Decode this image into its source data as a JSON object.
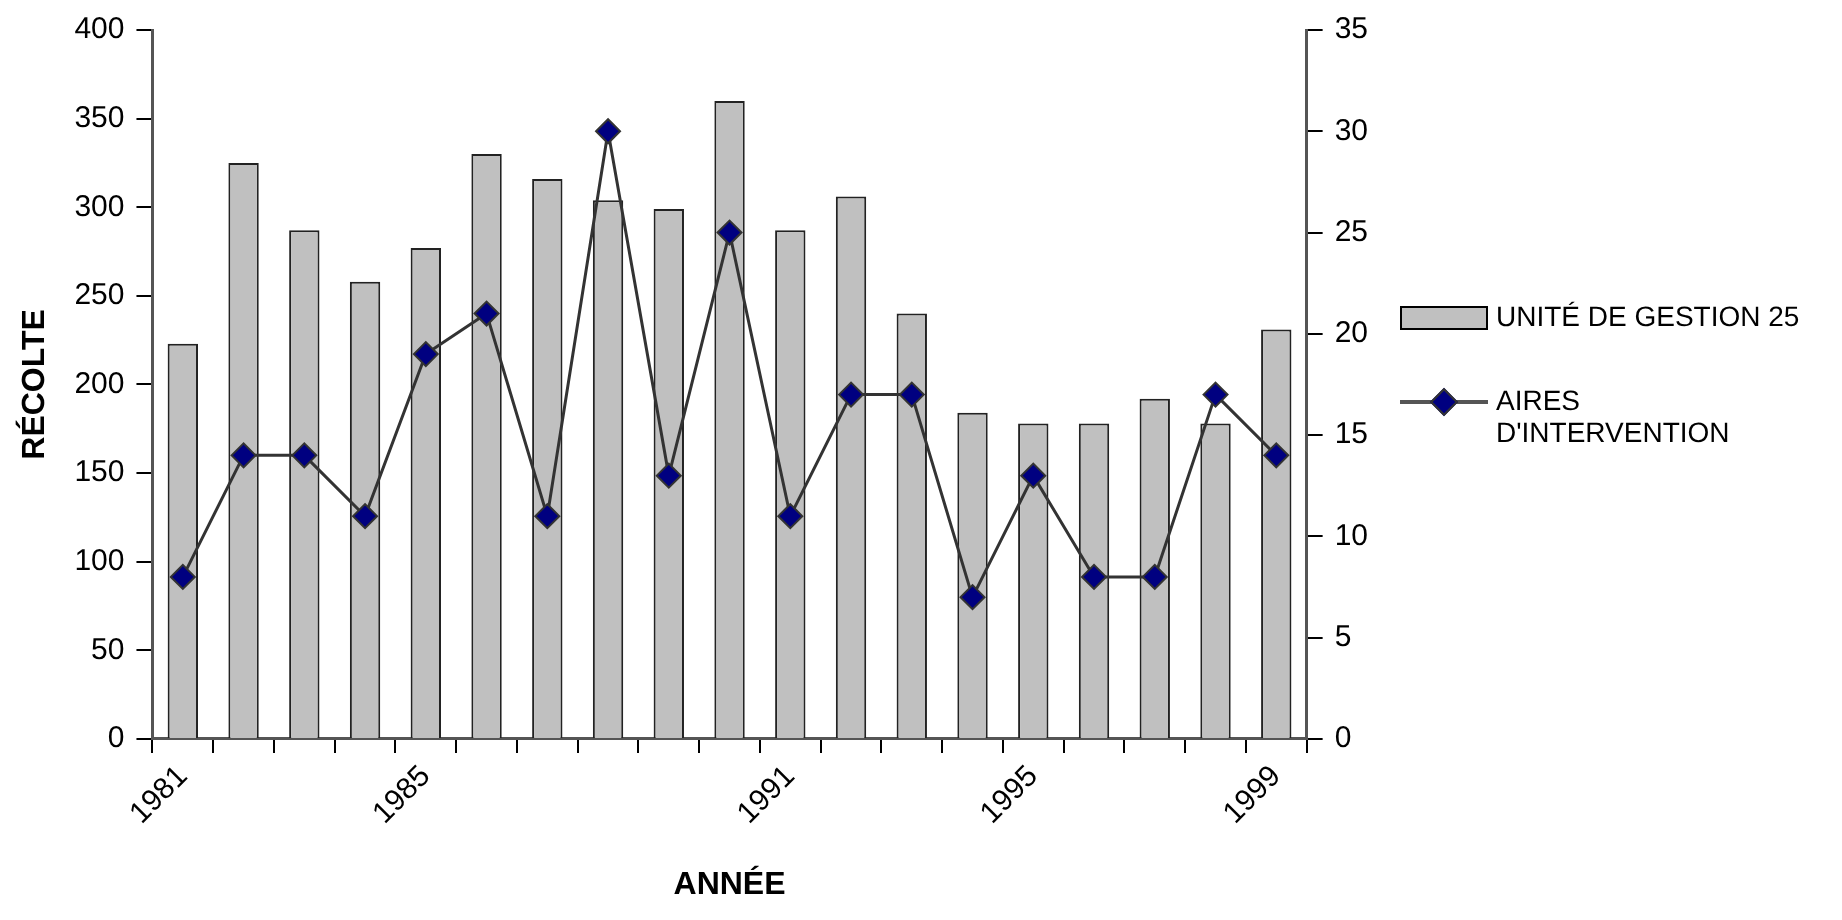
{
  "chart_data": {
    "type": "bar",
    "xlabel": "ANNÉE",
    "ylabel": "RÉCOLTE",
    "categories": [
      "1981",
      null,
      null,
      null,
      "1985",
      null,
      null,
      null,
      null,
      null,
      "1991",
      null,
      null,
      null,
      "1995",
      null,
      null,
      null,
      "1999"
    ],
    "series": [
      {
        "name": "UNITÉ DE GESTION 25",
        "color": "#c0c0c0",
        "values": [
          223,
          325,
          287,
          258,
          277,
          330,
          316,
          304,
          299,
          360,
          287,
          306,
          240,
          184,
          178,
          178,
          192,
          178,
          231
        ]
      },
      {
        "name": "AIRES D'INTERVENTION",
        "type": "line",
        "axis": "y2",
        "color": "#000080",
        "marker": "diamond",
        "values": [
          8,
          14,
          14,
          11,
          19,
          21,
          11,
          30,
          13,
          25,
          11,
          17,
          17,
          7,
          13,
          8,
          8,
          17,
          14
        ]
      }
    ],
    "ylim": [
      0,
      400
    ],
    "yticks": [
      0,
      50,
      100,
      150,
      200,
      250,
      300,
      350,
      400
    ],
    "y2lim": [
      0,
      35
    ],
    "y2ticks": [
      0,
      5,
      10,
      15,
      20,
      25,
      30,
      35
    ],
    "grid": false,
    "legend": "right"
  }
}
